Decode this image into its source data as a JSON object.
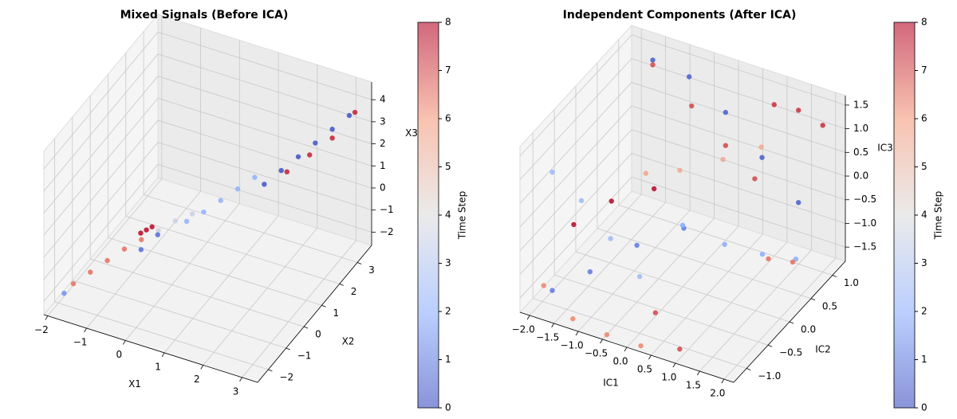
{
  "chart_data": [
    {
      "type": "scatter3d",
      "title": "Mixed Signals (Before ICA)",
      "xlabel": "X1",
      "ylabel": "X2",
      "zlabel": "X3",
      "xlim": [
        -2.1,
        3.4
      ],
      "ylim": [
        -2.6,
        3.8
      ],
      "zlim": [
        -2.6,
        4.8
      ],
      "xticks": [
        {
          "value": -2,
          "label": "−2"
        },
        {
          "value": -1,
          "label": "−1"
        },
        0,
        1,
        2,
        3
      ],
      "yticks": [
        {
          "value": -2,
          "label": "−2"
        },
        {
          "value": -1,
          "label": "−1"
        },
        0,
        1,
        2,
        3
      ],
      "zticks": [
        {
          "value": -2,
          "label": "−2"
        },
        {
          "value": -1,
          "label": "−1"
        },
        0,
        1,
        2,
        3,
        4
      ],
      "x": [
        1.6,
        1.9,
        2.2,
        2.5,
        2.8,
        3.1,
        0.2,
        0.5,
        0.8,
        1.1,
        1.4,
        2.0,
        2.4,
        2.8,
        3.2,
        -1.8,
        -1.5,
        -1.2,
        -0.9,
        -0.6,
        -0.3,
        0.0,
        0.3,
        -0.8,
        -0.7,
        -0.6,
        -1.9,
        -0.7,
        -0.5
      ],
      "y": [
        1.7,
        2.0,
        2.3,
        2.6,
        2.9,
        3.2,
        0.4,
        0.7,
        1.0,
        1.3,
        1.6,
        2.1,
        2.5,
        2.9,
        3.3,
        -1.6,
        -1.3,
        -1.0,
        -0.7,
        -0.4,
        -0.1,
        0.2,
        0.5,
        0.0,
        0.1,
        0.2,
        -1.9,
        -0.2,
        0.3
      ],
      "z": [
        1.2,
        1.7,
        2.2,
        2.7,
        3.2,
        3.7,
        0.0,
        0.3,
        0.7,
        1.1,
        1.5,
        1.6,
        2.2,
        2.8,
        3.8,
        -2.0,
        -1.6,
        -1.2,
        -0.8,
        -0.5,
        -0.2,
        0.1,
        0.3,
        -0.7,
        -0.6,
        -0.5,
        -2.2,
        -1.2,
        -0.9
      ],
      "c": [
        0.3,
        0.3,
        0.3,
        0.3,
        0.3,
        0.3,
        2.2,
        2.2,
        2.2,
        2.2,
        2.2,
        7.5,
        7.5,
        7.5,
        7.5,
        6.5,
        6.5,
        6.5,
        6.5,
        6.5,
        3.5,
        3.5,
        3.5,
        7.8,
        7.8,
        7.8,
        1.5,
        0.8,
        0.8
      ],
      "clim": [
        0,
        8
      ],
      "cticks": [
        0,
        1,
        2,
        3,
        4,
        5,
        6,
        7,
        8
      ],
      "clabel": "Time Step",
      "colormap": [
        "#3b4cc0",
        "#8db0fe",
        "#dddddd",
        "#f49a7b",
        "#b40426"
      ]
    },
    {
      "type": "scatter3d",
      "title": "Independent Components (After ICA)",
      "xlabel": "IC1",
      "ylabel": "IC2",
      "zlabel": "IC3",
      "xlim": [
        -2.2,
        2.2
      ],
      "ylim": [
        -1.3,
        1.3
      ],
      "zlim": [
        -1.8,
        1.7
      ],
      "xticks": [
        {
          "value": -2,
          "label": "−2.0"
        },
        {
          "value": -1.5,
          "label": "−1.5"
        },
        {
          "value": -1,
          "label": "−1.0"
        },
        {
          "value": -0.5,
          "label": "−0.5"
        },
        {
          "value": 0,
          "label": "0.0"
        },
        0.5,
        {
          "value": 1,
          "label": "1.0"
        },
        1.5,
        {
          "value": 2,
          "label": "2.0"
        }
      ],
      "yticks": [
        {
          "value": -1,
          "label": "−1.0"
        },
        {
          "value": -0.5,
          "label": "−0.5"
        },
        {
          "value": 0,
          "label": "0.0"
        },
        0.5,
        {
          "value": 1,
          "label": "1.0"
        }
      ],
      "zticks": [
        {
          "value": -1.5,
          "label": "−1.5"
        },
        {
          "value": -1,
          "label": "−1.0"
        },
        {
          "value": -0.5,
          "label": "−0.5"
        },
        {
          "value": 0,
          "label": "0.0"
        },
        0.5,
        {
          "value": 1,
          "label": "1.0"
        },
        1.5
      ],
      "x": [
        -1.5,
        -0.75,
        0.0,
        0.75,
        1.5,
        -1.5,
        -0.7,
        0.0,
        0.6,
        -1.2,
        -0.5,
        0.3,
        1.0,
        -1.8,
        -1.2,
        -0.6,
        0.0,
        -1.8,
        -1.2,
        -0.5,
        -1.8,
        -1.2,
        -0.5,
        0.2,
        -1.8,
        -1.2,
        -0.5,
        0.2,
        0.0,
        0.6,
        1.2,
        1.8,
        1.0,
        1.5,
        2.0,
        1.5,
        2.0,
        0.5,
        1.0
      ],
      "y": [
        1.0,
        1.0,
        1.0,
        1.0,
        1.0,
        1.0,
        1.0,
        1.0,
        1.0,
        0.5,
        0.5,
        0.6,
        0.7,
        -1.0,
        -1.0,
        -1.0,
        -1.0,
        -0.5,
        -0.3,
        -0.1,
        -1.0,
        -0.8,
        -0.5,
        -0.2,
        -1.2,
        -1.2,
        -1.2,
        -1.2,
        0.0,
        0.3,
        0.5,
        0.6,
        1.0,
        1.0,
        1.0,
        0.3,
        0.3,
        -1.2,
        -1.2
      ],
      "z": [
        1.5,
        1.4,
        0.9,
        0.2,
        -0.5,
        1.4,
        0.8,
        0.2,
        -0.3,
        -0.3,
        0.0,
        0.4,
        0.8,
        1.0,
        0.6,
        0.0,
        -0.6,
        -0.6,
        -0.1,
        0.2,
        -1.5,
        -1.1,
        -0.6,
        -0.3,
        -1.2,
        -1.7,
        -1.8,
        -1.8,
        -0.5,
        -1.0,
        -1.2,
        -1.2,
        1.4,
        1.45,
        1.3,
        -1.0,
        -0.9,
        -1.0,
        -1.6
      ],
      "c": [
        0.5,
        0.5,
        0.5,
        0.5,
        0.5,
        7.0,
        7.0,
        7.0,
        7.0,
        5.5,
        5.5,
        5.5,
        5.5,
        2.5,
        2.5,
        2.5,
        2.5,
        7.8,
        7.8,
        7.8,
        1.0,
        1.0,
        1.0,
        1.0,
        6.2,
        6.2,
        6.2,
        6.2,
        2.0,
        2.0,
        2.0,
        2.0,
        7.3,
        7.3,
        7.3,
        6.5,
        6.5,
        7.0,
        7.0
      ],
      "clim": [
        0,
        8
      ],
      "cticks": [
        0,
        1,
        2,
        3,
        4,
        5,
        6,
        7,
        8
      ],
      "clabel": "Time Step",
      "colormap": [
        "#3b4cc0",
        "#8db0fe",
        "#dddddd",
        "#f49a7b",
        "#b40426"
      ]
    }
  ]
}
